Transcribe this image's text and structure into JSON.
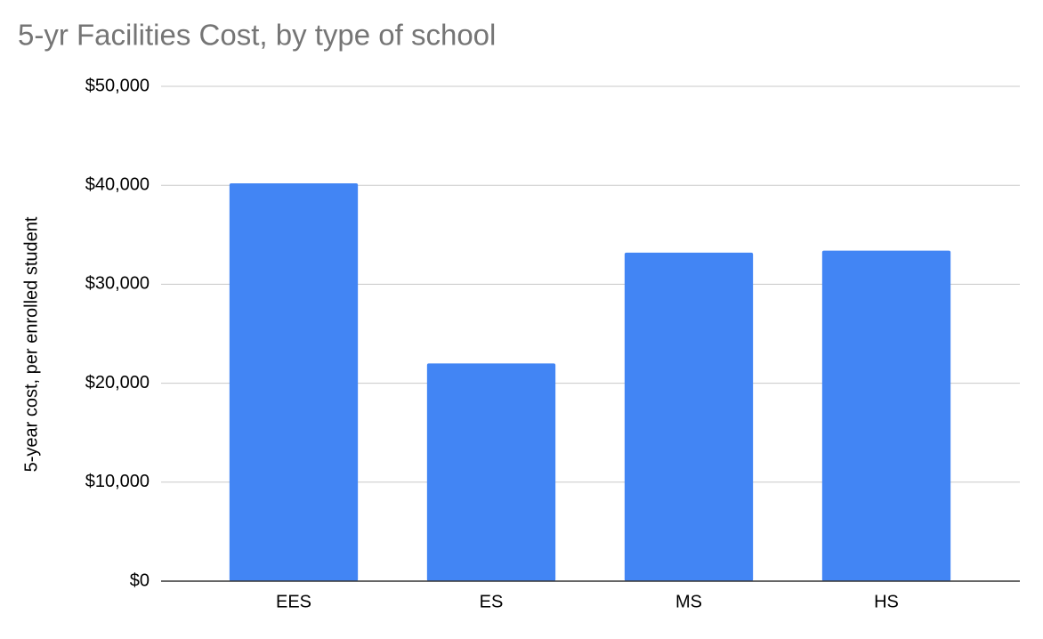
{
  "chart_data": {
    "type": "bar",
    "title": "5-yr Facilities Cost, by type of school",
    "y_label": "5-year cost, per enrolled student",
    "categories": [
      "EES",
      "ES",
      "MS",
      "HS"
    ],
    "values": [
      40200,
      22000,
      33200,
      33400
    ],
    "color": "#4285f4",
    "ylim": [
      0,
      50000
    ],
    "yticks": [
      {
        "value": 0,
        "label": "$0"
      },
      {
        "value": 10000,
        "label": "$10,000"
      },
      {
        "value": 20000,
        "label": "$20,000"
      },
      {
        "value": 30000,
        "label": "$30,000"
      },
      {
        "value": 40000,
        "label": "$40,000"
      },
      {
        "value": 50000,
        "label": "$50,000"
      }
    ],
    "grid": true
  }
}
